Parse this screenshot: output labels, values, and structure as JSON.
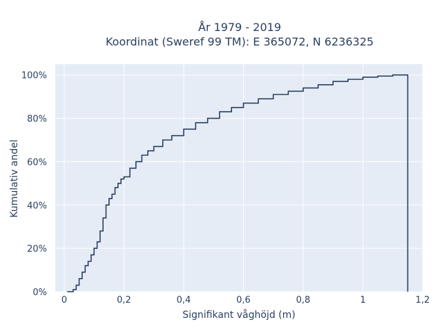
{
  "chart_data": {
    "type": "line",
    "title_line1": "År 1979 - 2019",
    "title_line2": "Koordinat (Sweref 99 TM): E 365072, N 6236325",
    "xlabel": "Signifikant våghöjd (m)",
    "ylabel": "Kumulativ andel",
    "xlim": [
      -0.03,
      1.2
    ],
    "ylim": [
      0,
      1.05
    ],
    "x_ticks": [
      0,
      0.2,
      0.4,
      0.6,
      0.8,
      1,
      1.2
    ],
    "x_tick_labels": [
      "0",
      "0,2",
      "0,4",
      "0,6",
      "0,8",
      "1",
      "1,2"
    ],
    "y_ticks": [
      0,
      0.2,
      0.4,
      0.6,
      0.8,
      1.0
    ],
    "y_tick_labels": [
      "0%",
      "20%",
      "40%",
      "60%",
      "80%",
      "100%"
    ],
    "grid": true,
    "line_shape": "step",
    "series": [
      {
        "x": [
          0.02,
          0.03,
          0.04,
          0.05,
          0.06,
          0.07,
          0.08,
          0.09,
          0.1,
          0.11,
          0.12,
          0.13,
          0.14,
          0.15,
          0.16,
          0.17,
          0.18,
          0.19,
          0.2,
          0.22,
          0.24,
          0.26,
          0.28,
          0.3,
          0.33,
          0.36,
          0.4,
          0.44,
          0.48,
          0.52,
          0.56,
          0.6,
          0.65,
          0.7,
          0.75,
          0.8,
          0.85,
          0.9,
          0.95,
          1.0,
          1.05,
          1.1,
          1.15
        ],
        "y": [
          0.0,
          0.01,
          0.03,
          0.06,
          0.09,
          0.12,
          0.14,
          0.17,
          0.2,
          0.23,
          0.28,
          0.34,
          0.4,
          0.43,
          0.45,
          0.48,
          0.5,
          0.52,
          0.53,
          0.57,
          0.6,
          0.63,
          0.65,
          0.67,
          0.7,
          0.72,
          0.75,
          0.78,
          0.8,
          0.83,
          0.85,
          0.87,
          0.89,
          0.91,
          0.925,
          0.94,
          0.955,
          0.97,
          0.98,
          0.99,
          0.995,
          1.0,
          1.0
        ]
      }
    ]
  },
  "colors": {
    "plot_bg": "#e5ecf6",
    "grid": "#ffffff",
    "line": "#2a3f5f"
  }
}
